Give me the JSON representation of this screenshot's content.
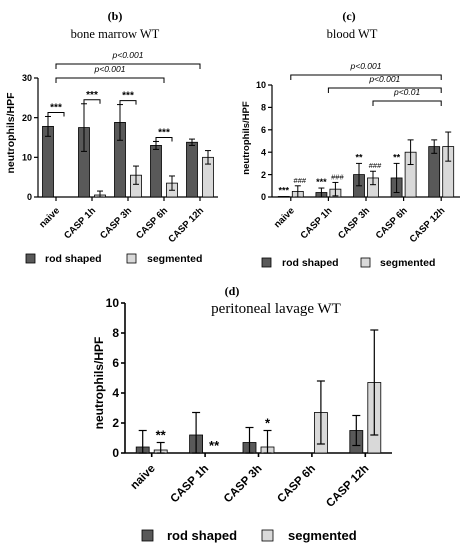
{
  "colors": {
    "rod": "#595959",
    "seg": "#d9d9d9",
    "ink": "#000000"
  },
  "legend": {
    "rod": "rod shaped",
    "seg": "segmented"
  },
  "chart_data": [
    {
      "type": "bar",
      "panel": "(b)",
      "title": "bone marrow WT",
      "ylabel": "neutrophils/HPF",
      "ylim": [
        0,
        30
      ],
      "yticks": [
        "0",
        "10",
        "20",
        "30"
      ],
      "categories": [
        "naive",
        "CASP 1h",
        "CASP 3h",
        "CASP 6h",
        "CASP 12h"
      ],
      "series": [
        {
          "name": "rod shaped",
          "values": [
            17.8,
            17.5,
            18.8,
            13.0,
            13.8
          ],
          "errors": [
            2.5,
            6.0,
            4.5,
            1.0,
            0.8
          ]
        },
        {
          "name": "segmented",
          "values": [
            0,
            0.5,
            5.5,
            3.5,
            10.0
          ],
          "errors": [
            0,
            1.0,
            2.3,
            1.8,
            1.7
          ]
        }
      ],
      "point_labels": [
        {
          "series": "rod shaped",
          "category": "naive",
          "text": ""
        },
        {
          "series": "segmented",
          "category": "naive",
          "text": ""
        }
      ],
      "pair_labels": [
        "***",
        "***",
        "***",
        "***",
        ""
      ],
      "brackets": [
        {
          "text": "p<0.001"
        },
        {
          "text": "p<0.001"
        }
      ]
    },
    {
      "type": "bar",
      "panel": "(c)",
      "title": "blood WT",
      "ylabel": "neutrophils/HPF",
      "ylim": [
        0,
        10
      ],
      "yticks": [
        "0",
        "2",
        "4",
        "6",
        "8",
        "10"
      ],
      "categories": [
        "naive",
        "CASP 1h",
        "CASP 3h",
        "CASP 6h",
        "CASP 12h"
      ],
      "series": [
        {
          "name": "rod shaped",
          "values": [
            0.05,
            0.4,
            2.0,
            1.7,
            4.5
          ],
          "errors": [
            0,
            0.4,
            1.0,
            1.3,
            0.6
          ]
        },
        {
          "name": "segmented",
          "values": [
            0.5,
            0.7,
            1.7,
            4.0,
            4.5
          ],
          "errors": [
            0.5,
            0.6,
            0.6,
            1.1,
            1.3
          ]
        }
      ],
      "rod_labels": [
        "***",
        "***",
        "**",
        "**",
        ""
      ],
      "seg_labels": [
        "###",
        "###",
        "###",
        "",
        ""
      ],
      "brackets": [
        {
          "text": "p<0.001"
        },
        {
          "text": "p<0.001"
        },
        {
          "text": "p<0.01"
        }
      ]
    },
    {
      "type": "bar",
      "panel": "(d)",
      "title": "peritoneal lavage WT",
      "ylabel": "neutrophils/HPF",
      "ylim": [
        0,
        10
      ],
      "yticks": [
        "0",
        "2",
        "4",
        "6",
        "8",
        "10"
      ],
      "categories": [
        "naive",
        "CASP 1h",
        "CASP 3h",
        "CASP 6h",
        "CASP 12h"
      ],
      "series": [
        {
          "name": "rod shaped",
          "values": [
            0.4,
            1.2,
            0.7,
            0,
            1.5
          ],
          "errors": [
            1.1,
            1.5,
            1.0,
            0,
            1.0
          ]
        },
        {
          "name": "segmented",
          "values": [
            0.2,
            0,
            0.4,
            2.7,
            4.7
          ],
          "errors": [
            0.5,
            0,
            1.1,
            2.1,
            3.5
          ]
        }
      ],
      "seg_labels": [
        "**",
        "**",
        "*",
        "",
        ""
      ]
    }
  ]
}
